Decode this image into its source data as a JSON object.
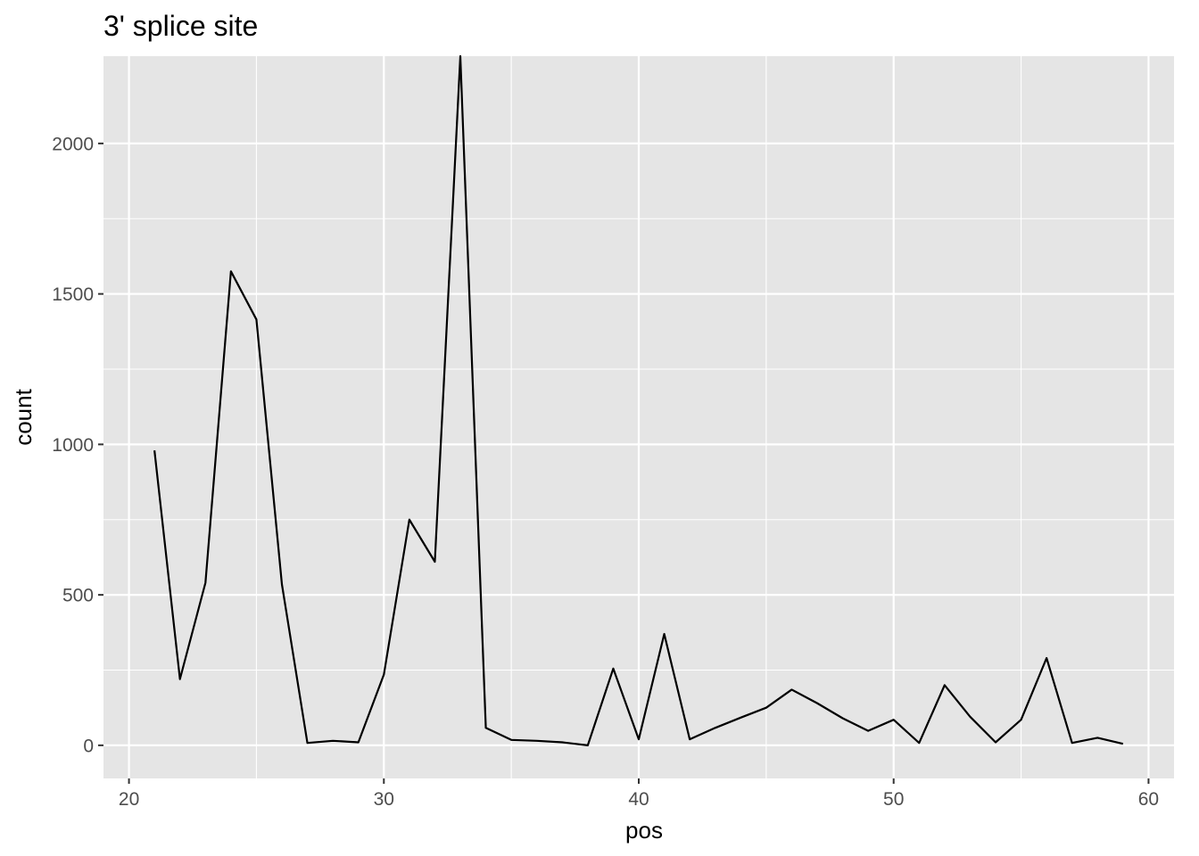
{
  "chart_data": {
    "type": "line",
    "title": "3' splice site",
    "xlabel": "pos",
    "ylabel": "count",
    "xlim": [
      19,
      61
    ],
    "ylim": [
      -110,
      2290
    ],
    "x_ticks": [
      20,
      30,
      40,
      50,
      60
    ],
    "y_ticks": [
      0,
      500,
      1000,
      1500,
      2000
    ],
    "grid": true,
    "panel_background": "#e5e5e5",
    "line_color": "#000000",
    "series": [
      {
        "x": [
          21,
          22,
          23,
          24,
          25,
          26,
          27,
          28,
          29,
          30,
          31,
          32,
          33,
          34,
          35,
          36,
          37,
          38,
          39,
          40,
          41,
          42,
          43,
          44,
          45,
          46,
          47,
          48,
          49,
          50,
          51,
          52,
          53,
          54,
          55,
          56,
          57,
          58,
          59
        ],
        "values": [
          980,
          220,
          540,
          1575,
          1415,
          535,
          8,
          15,
          10,
          235,
          750,
          610,
          2290,
          58,
          18,
          15,
          10,
          0,
          255,
          20,
          370,
          20,
          58,
          92,
          125,
          185,
          140,
          90,
          48,
          85,
          8,
          200,
          95,
          10,
          85,
          290,
          8,
          25,
          5
        ]
      }
    ]
  }
}
